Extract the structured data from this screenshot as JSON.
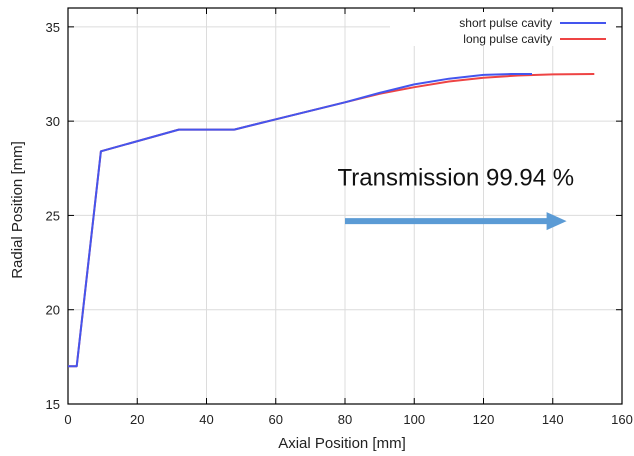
{
  "chart_data": {
    "type": "line",
    "xlabel": "Axial Position [mm]",
    "ylabel": "Radial Position [mm]",
    "xlim": [
      0,
      160
    ],
    "ylim": [
      15,
      36
    ],
    "x_ticks": [
      0,
      20,
      40,
      60,
      80,
      100,
      120,
      140,
      160
    ],
    "y_ticks": [
      15,
      20,
      25,
      30,
      35
    ],
    "grid": true,
    "legend_position": "top-right",
    "series": [
      {
        "name": "short pulse cavity",
        "color": "#4455ee",
        "x": [
          0,
          2.5,
          9.5,
          32,
          48,
          60,
          80,
          90,
          100,
          110,
          120,
          128,
          134
        ],
        "y": [
          17.0,
          17.0,
          28.4,
          29.55,
          29.55,
          30.1,
          31.0,
          31.5,
          31.95,
          32.25,
          32.45,
          32.5,
          32.5
        ]
      },
      {
        "name": "long pulse cavity",
        "color": "#ee4444",
        "x": [
          0,
          2.5,
          9.5,
          32,
          48,
          60,
          80,
          90,
          100,
          110,
          120,
          130,
          140,
          152
        ],
        "y": [
          17.0,
          17.0,
          28.4,
          29.55,
          29.55,
          30.1,
          31.0,
          31.45,
          31.8,
          32.1,
          32.3,
          32.42,
          32.48,
          32.5
        ]
      }
    ],
    "annotations": [
      {
        "text": "Transmission 99.94 %",
        "x": 112,
        "y": 26.6
      }
    ],
    "arrow": {
      "x_start": 80,
      "x_end": 144,
      "y": 24.7,
      "color": "#5b9bd5"
    }
  }
}
